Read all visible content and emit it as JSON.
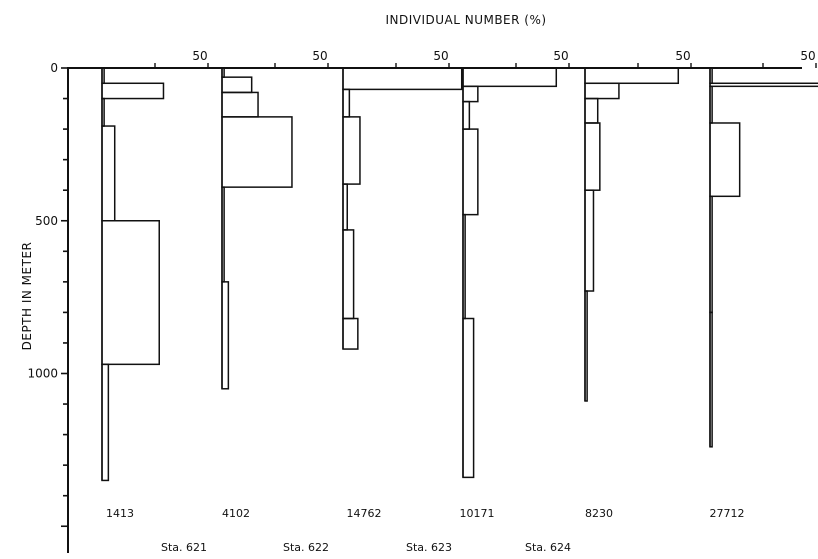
{
  "chart_data": {
    "type": "bar",
    "xlabel": "INDIVIDUAL NUMBER (%)",
    "ylabel": "DEPTH IN METER",
    "ylim": [
      0,
      1400
    ],
    "y_ticks": [
      "0",
      "500",
      "1000"
    ],
    "x_tick_label": "50",
    "profiles": [
      {
        "total": "1413",
        "bars": [
          {
            "top": 0,
            "bottom": 50,
            "value": 1
          },
          {
            "top": 50,
            "bottom": 100,
            "value": 29
          },
          {
            "top": 100,
            "bottom": 190,
            "value": 1
          },
          {
            "top": 190,
            "bottom": 500,
            "value": 6
          },
          {
            "top": 500,
            "bottom": 970,
            "value": 27
          },
          {
            "top": 970,
            "bottom": 1350,
            "value": 3
          }
        ]
      },
      {
        "total": "4102",
        "bars": [
          {
            "top": 0,
            "bottom": 30,
            "value": 1
          },
          {
            "top": 30,
            "bottom": 80,
            "value": 14
          },
          {
            "top": 80,
            "bottom": 160,
            "value": 17
          },
          {
            "top": 160,
            "bottom": 390,
            "value": 33
          },
          {
            "top": 390,
            "bottom": 700,
            "value": 1
          },
          {
            "top": 700,
            "bottom": 1050,
            "value": 3
          }
        ]
      },
      {
        "total": "14762",
        "bars": [
          {
            "top": 0,
            "bottom": 70,
            "value": 56
          },
          {
            "top": 70,
            "bottom": 160,
            "value": 3
          },
          {
            "top": 160,
            "bottom": 380,
            "value": 8
          },
          {
            "top": 380,
            "bottom": 530,
            "value": 2
          },
          {
            "top": 530,
            "bottom": 820,
            "value": 5
          },
          {
            "top": 820,
            "bottom": 920,
            "value": 7
          }
        ]
      },
      {
        "total": "10171",
        "bars": [
          {
            "top": 0,
            "bottom": 60,
            "value": 44
          },
          {
            "top": 60,
            "bottom": 110,
            "value": 7
          },
          {
            "top": 110,
            "bottom": 200,
            "value": 3
          },
          {
            "top": 200,
            "bottom": 480,
            "value": 7
          },
          {
            "top": 480,
            "bottom": 820,
            "value": 1
          },
          {
            "top": 820,
            "bottom": 1340,
            "value": 5
          }
        ]
      },
      {
        "total": "8230",
        "bars": [
          {
            "top": 0,
            "bottom": 50,
            "value": 44
          },
          {
            "top": 50,
            "bottom": 100,
            "value": 16
          },
          {
            "top": 100,
            "bottom": 180,
            "value": 6
          },
          {
            "top": 180,
            "bottom": 400,
            "value": 7
          },
          {
            "top": 400,
            "bottom": 730,
            "value": 4
          },
          {
            "top": 730,
            "bottom": 1090,
            "value": 1
          }
        ]
      },
      {
        "total": "27712",
        "bars": [
          {
            "top": 0,
            "bottom": 50,
            "value": 1
          },
          {
            "top": 50,
            "bottom": 60,
            "value": 52
          },
          {
            "top": 60,
            "bottom": 180,
            "value": 1
          },
          {
            "top": 180,
            "bottom": 420,
            "value": 14
          },
          {
            "top": 420,
            "bottom": 800,
            "value": 1
          },
          {
            "top": 800,
            "bottom": 1240,
            "value": 1
          }
        ]
      }
    ],
    "stations": [
      "Sta. 621",
      "Sta. 622",
      "Sta. 623",
      "Sta. 624"
    ]
  }
}
